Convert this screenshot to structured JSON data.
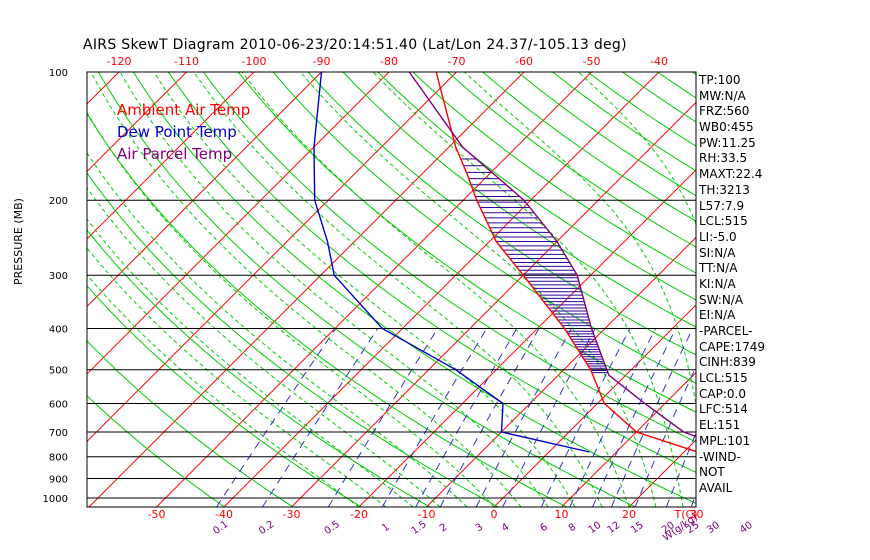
{
  "title": "AIRS SkewT Diagram 2010-06-23/20:14:51.40 (Lat/Lon 24.37/-105.13 deg)",
  "legend": [
    {
      "label": "Ambient Air Temp",
      "color": "#ff0000"
    },
    {
      "label": "Dew Point Temp",
      "color": "#0000cc"
    },
    {
      "label": "Air Parcel Temp",
      "color": "#800080"
    }
  ],
  "side_panel": [
    "TP:100",
    "MW:N/A",
    "FRZ:560",
    "WB0:455",
    "PW:11.25",
    "RH:33.5",
    "MAXT:22.4",
    "TH:3213",
    "L57:7.9",
    "LCL:515",
    "LI:-5.0",
    "SI:N/A",
    "TT:N/A",
    "KI:N/A",
    "SW:N/A",
    "EI:N/A",
    "-PARCEL-",
    "CAPE:1749",
    "CINH:839",
    "LCL:515",
    "CAP:0.0",
    "LFC:514",
    "EL:151",
    "MPL:101",
    "-WIND-",
    "NOT",
    "AVAIL"
  ],
  "colors": {
    "isotherm": "#ff0000",
    "dry_adiabat": "#00cc00",
    "moist_adiabat": "#00cc00",
    "mixing_ratio": "#3333cc",
    "axis_top": "#ff0000",
    "axis_bottom": "#ff0000",
    "mixing_labels": "#800080",
    "hatch": "#330099",
    "isobar": "#000000"
  },
  "chart_data": {
    "type": "line",
    "title": "AIRS SkewT Diagram 2010-06-23/20:14:51.40 (Lat/Lon 24.37/-105.13 deg)",
    "ylabel": "PRESSURE (MB)",
    "xlabel_bottom": "T(C)",
    "xlabel_mixing": "W(g/kg)",
    "pressure_levels": [
      100,
      200,
      300,
      400,
      500,
      600,
      700,
      800,
      900,
      1000
    ],
    "top_temp_ticks": [
      -120,
      -110,
      -100,
      -90,
      -80,
      -70,
      -60,
      -50,
      -40
    ],
    "bottom_temp_ticks": [
      -50,
      -40,
      -30,
      -20,
      -10,
      0,
      10,
      20,
      30
    ],
    "mixing_ratio_labels": [
      "0.1",
      "0.2",
      "0.5",
      "1",
      "1.5",
      "2",
      "3",
      "4",
      "6",
      "8",
      "10",
      "12",
      "15",
      "20",
      "25",
      "30",
      "40"
    ],
    "series": [
      {
        "name": "Ambient Air Temp",
        "p": [
          100,
          150,
          175,
          200,
          250,
          300,
          400,
          500,
          600,
          700,
          780
        ],
        "t": [
          -73,
          -59,
          -53,
          -48,
          -39,
          -30,
          -16,
          -6,
          1,
          10,
          22
        ]
      },
      {
        "name": "Dew Point Temp",
        "p": [
          100,
          150,
          200,
          250,
          300,
          400,
          500,
          600,
          700,
          780
        ],
        "t": [
          -90,
          -80,
          -72,
          -64,
          -58,
          -43,
          -26,
          -14,
          -10,
          6
        ]
      },
      {
        "name": "Air Parcel Temp",
        "p": [
          100,
          150,
          200,
          250,
          300,
          400,
          515,
          600,
          700,
          780
        ],
        "t": [
          -77,
          -58,
          -41,
          -30,
          -22,
          -12,
          -2.5,
          7,
          17,
          28
        ]
      }
    ]
  }
}
